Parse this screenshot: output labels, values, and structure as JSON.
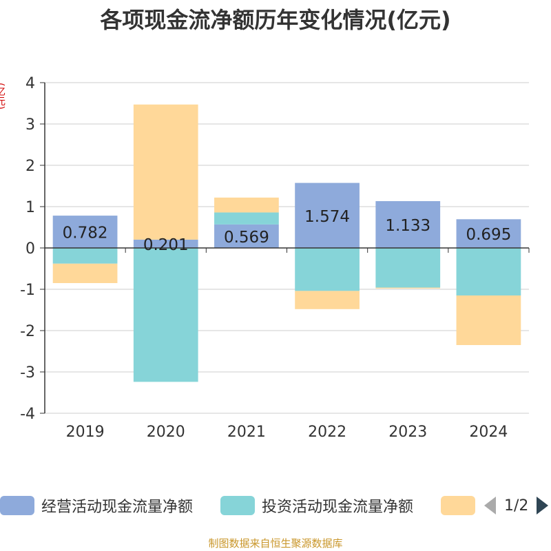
{
  "chart_data": {
    "type": "bar",
    "stacked": true,
    "title": "各项现金流净额历年变化情况(亿元)",
    "ylabel": "(亿元)",
    "ylim": [
      -4,
      4
    ],
    "yticks": [
      4,
      3,
      2,
      1,
      0,
      -1,
      -2,
      -3,
      -4
    ],
    "categories": [
      "2019",
      "2020",
      "2021",
      "2022",
      "2023",
      "2024"
    ],
    "series": [
      {
        "name": "经营活动现金流量净额",
        "color": "#8eaadb",
        "values": [
          0.782,
          0.201,
          0.569,
          1.574,
          1.133,
          0.695
        ],
        "show_labels": true
      },
      {
        "name": "投资活动现金流量净额",
        "color": "#86d4d8",
        "values": [
          -0.38,
          -3.24,
          0.29,
          -1.04,
          -0.96,
          -1.15
        ],
        "show_labels": false
      },
      {
        "name": "",
        "color": "#ffd899",
        "values": [
          -0.47,
          3.27,
          0.36,
          -0.44,
          -0.02,
          -1.2
        ],
        "show_labels": false
      }
    ],
    "grid": true,
    "legend_position": "bottom"
  },
  "legend": {
    "items": [
      {
        "label": "经营活动现金流量净额",
        "color": "#8eaadb"
      },
      {
        "label": "投资活动现金流量净额",
        "color": "#86d4d8"
      },
      {
        "label": "",
        "color": "#ffd899"
      }
    ],
    "pager_text": "1/2"
  },
  "source": "制图数据来自恒生聚源数据库"
}
